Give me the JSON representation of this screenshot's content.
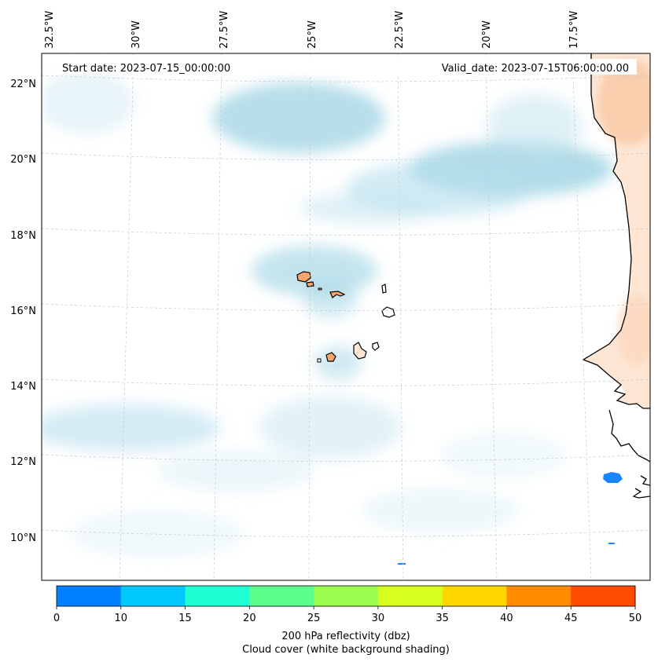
{
  "map": {
    "header": {
      "start_date": "Start date: 2023-07-15_00:00:00",
      "valid_date": "Valid_date: 2023-07-15T06:00:00.00"
    },
    "lon_labels": [
      "32.5°W",
      "30°W",
      "27.5°W",
      "25°W",
      "22.5°W",
      "20°W",
      "17.5°W"
    ],
    "lat_labels": [
      "22°N",
      "20°N",
      "18°N",
      "16°N",
      "14°N",
      "12°N",
      "10°N"
    ],
    "land_color": "#f5b27e",
    "coastline_color": "#000000",
    "cloud_color": "#a8d8e6",
    "gridline_color": "#c8c8c8"
  },
  "colorbar": {
    "ticks": [
      "0",
      "10",
      "15",
      "20",
      "25",
      "30",
      "35",
      "40",
      "45",
      "50"
    ],
    "colors": [
      "#0080ff",
      "#00c8ff",
      "#1effd2",
      "#5aff8c",
      "#9bff50",
      "#d7ff1e",
      "#ffd700",
      "#ff8c00",
      "#ff4b00"
    ],
    "label_line1": "200 hPa reflectivity (dbz)",
    "label_line2": "Cloud cover (white background shading)"
  }
}
